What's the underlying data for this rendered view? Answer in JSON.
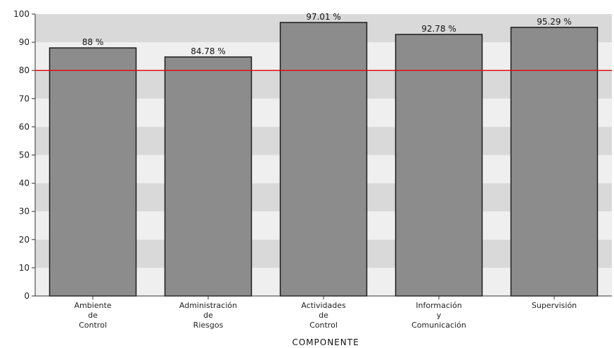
{
  "chart_data": {
    "type": "bar",
    "categories": [
      [
        "Ambiente",
        "de",
        "Control"
      ],
      [
        "Administración",
        "de",
        "Riesgos"
      ],
      [
        "Actividades",
        "de",
        "Control"
      ],
      [
        "Información",
        "y",
        "Comunicación"
      ],
      [
        "Supervisión"
      ]
    ],
    "values": [
      88,
      84.78,
      97.01,
      92.78,
      95.29
    ],
    "data_labels": [
      "88 %",
      "84.78 %",
      "97.01 %",
      "92.78 %",
      "95.29 %"
    ],
    "xlabel": "COMPONENTE",
    "ylabel": "",
    "ylim": [
      0,
      100
    ],
    "yticks": [
      "0",
      "10",
      "20",
      "30",
      "40",
      "50",
      "60",
      "70",
      "80",
      "90",
      "100"
    ],
    "reference_line": 80,
    "grid": "alternating horizontal bands",
    "legend": "none"
  },
  "colors": {
    "bar_fill": "#8c8c8c",
    "bar_stroke": "#1a1a1a",
    "band_dark": "#d9d9d9",
    "band_light": "#efefef",
    "reference_line": "#e01010"
  }
}
